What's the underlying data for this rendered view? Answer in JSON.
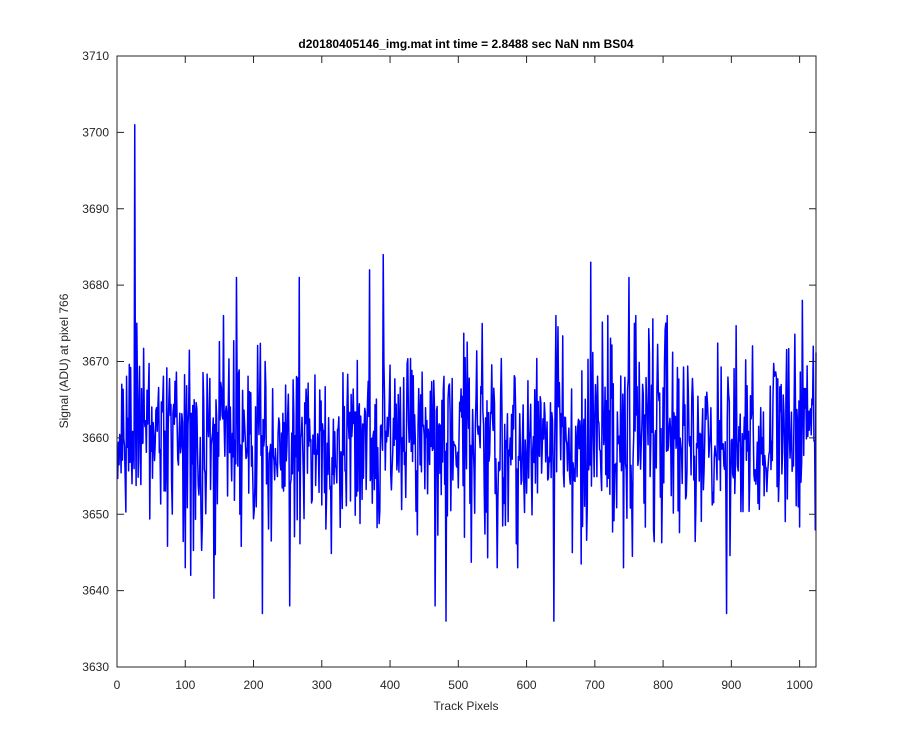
{
  "chart_data": {
    "type": "line",
    "title": "d20180405146_img.mat int time = 2.8488 sec  NaN nm BS04",
    "xlabel": "Track Pixels",
    "ylabel": "Signal (ADU) at pixel 766",
    "xlim": [
      0,
      1024
    ],
    "ylim": [
      3630,
      3710
    ],
    "x_ticks": [
      0,
      100,
      200,
      300,
      400,
      500,
      600,
      700,
      800,
      900,
      1000
    ],
    "y_ticks": [
      3630,
      3640,
      3650,
      3660,
      3670,
      3680,
      3690,
      3700,
      3710
    ],
    "grid": false,
    "box": true,
    "series": [
      {
        "color": "#0000ff",
        "x_start": 1,
        "x_step": 1,
        "count": 1024,
        "mean": 3660,
        "keypoints": [
          {
            "x": 26,
            "y": 3701
          },
          {
            "x": 29,
            "y": 3675
          },
          {
            "x": 100,
            "y": 3643
          },
          {
            "x": 108,
            "y": 3642
          },
          {
            "x": 142,
            "y": 3639
          },
          {
            "x": 175,
            "y": 3681
          },
          {
            "x": 213,
            "y": 3637
          },
          {
            "x": 253,
            "y": 3638
          },
          {
            "x": 267,
            "y": 3681
          },
          {
            "x": 370,
            "y": 3682
          },
          {
            "x": 390,
            "y": 3684
          },
          {
            "x": 466,
            "y": 3638
          },
          {
            "x": 482,
            "y": 3636
          },
          {
            "x": 640,
            "y": 3636
          },
          {
            "x": 694,
            "y": 3683
          },
          {
            "x": 750,
            "y": 3681
          },
          {
            "x": 893,
            "y": 3637
          },
          {
            "x": 1004,
            "y": 3678
          },
          {
            "x": 1020,
            "y": 3672
          }
        ]
      }
    ]
  }
}
